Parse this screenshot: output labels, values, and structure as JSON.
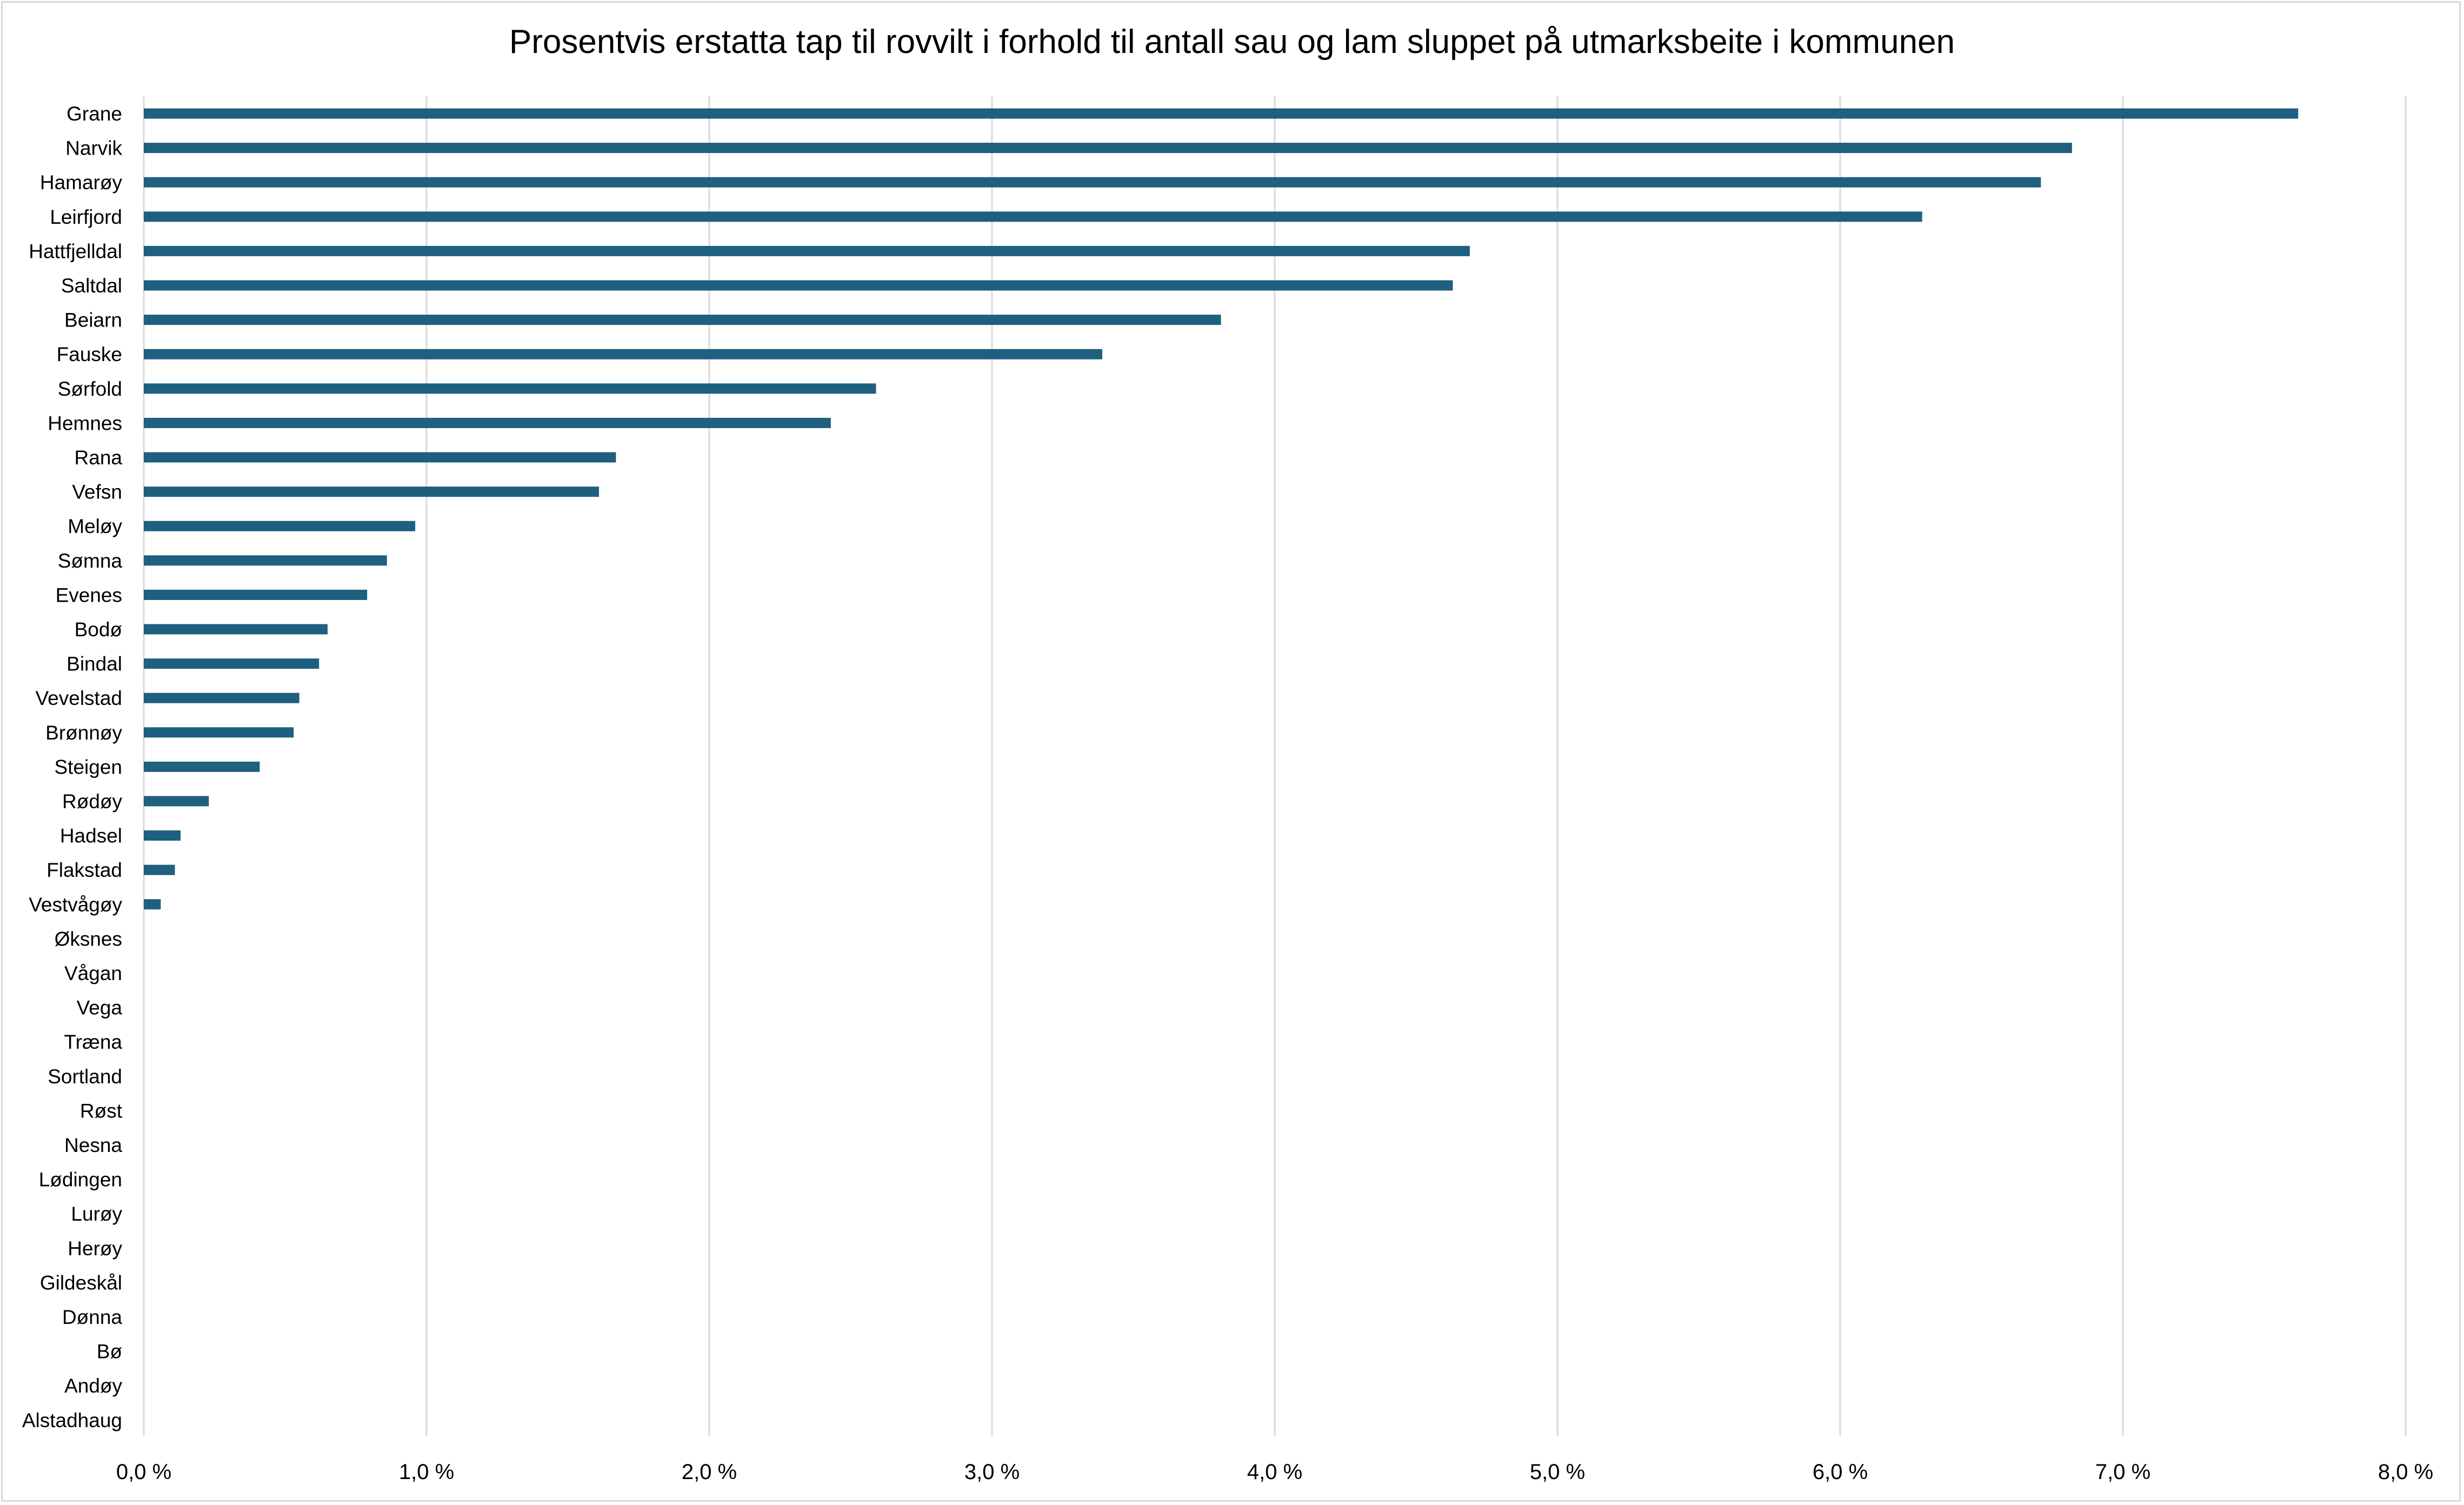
{
  "chart_data": {
    "type": "bar",
    "orientation": "horizontal",
    "title": "Prosentvis erstatta tap til rovvilt i forhold til antall sau og lam sluppet på utmarksbeite i kommunen",
    "xlabel": "",
    "ylabel": "",
    "xlim": [
      0,
      8
    ],
    "x_ticks": [
      "0,0 %",
      "1,0 %",
      "2,0 %",
      "3,0 %",
      "4,0 %",
      "5,0 %",
      "6,0 %",
      "7,0 %",
      "8,0 %"
    ],
    "grid": true,
    "legend": "none",
    "bar_color": "#1f5f7f",
    "categories": [
      "Grane",
      "Narvik",
      "Hamarøy",
      "Leirfjord",
      "Hattfjelldal",
      "Saltdal",
      "Beiarn",
      "Fauske",
      "Sørfold",
      "Hemnes",
      "Rana",
      "Vefsn",
      "Meløy",
      "Sømna",
      "Evenes",
      "Bodø",
      "Bindal",
      "Vevelstad",
      "Brønnøy",
      "Steigen",
      "Rødøy",
      "Hadsel",
      "Flakstad",
      "Vestvågøy",
      "Øksnes",
      "Vågan",
      "Vega",
      "Træna",
      "Sortland",
      "Røst",
      "Nesna",
      "Lødingen",
      "Lurøy",
      "Herøy",
      "Gildeskål",
      "Dønna",
      "Bø",
      "Andøy",
      "Alstadhaug"
    ],
    "values": [
      7.62,
      6.82,
      6.71,
      6.29,
      4.69,
      4.63,
      3.81,
      3.39,
      2.59,
      2.43,
      1.67,
      1.61,
      0.96,
      0.86,
      0.79,
      0.65,
      0.62,
      0.55,
      0.53,
      0.41,
      0.23,
      0.13,
      0.11,
      0.06,
      0,
      0,
      0,
      0,
      0,
      0,
      0,
      0,
      0,
      0,
      0,
      0,
      0,
      0,
      0
    ]
  }
}
